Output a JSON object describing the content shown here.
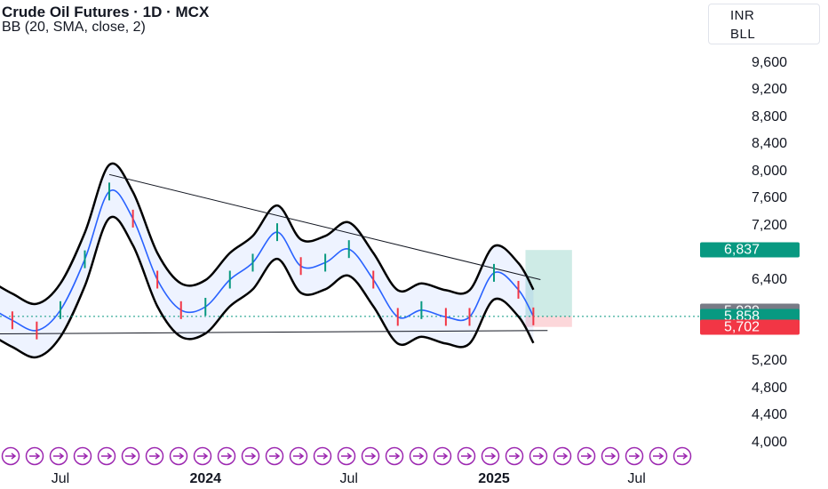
{
  "header": {
    "title": "Crude Oil Futures · 1D · MCX",
    "indicator": "BB (20, SMA, close, 2)",
    "currency": "INR",
    "unit": "BLL"
  },
  "price_badges": [
    {
      "label": "6,837",
      "value": 6837,
      "color": "#089981"
    },
    {
      "label": "5,929",
      "value": 5929,
      "color": "#787b86"
    },
    {
      "label": "5,858",
      "value": 5858,
      "color": "#089981"
    },
    {
      "label": "5,702",
      "value": 5702,
      "color": "#f23645"
    }
  ],
  "chart_data": {
    "type": "line",
    "title": "Crude Oil Futures · 1D · MCX",
    "y_axis": {
      "ticks": [
        9600,
        9200,
        8800,
        8400,
        8000,
        7600,
        7200,
        6400,
        5200,
        4800,
        4400,
        4000
      ],
      "tick_labels": [
        "9,600",
        "9,200",
        "8,800",
        "8,400",
        "8,000",
        "7,600",
        "7,200",
        "6,400",
        "5,200",
        "4,800",
        "4,400",
        "4,000"
      ]
    },
    "x_axis": {
      "labels": [
        {
          "text": "Jul",
          "date": "2023-07-01",
          "bold": false
        },
        {
          "text": "2024",
          "date": "2024-01-01",
          "bold": true
        },
        {
          "text": "Jul",
          "date": "2024-07-01",
          "bold": false
        },
        {
          "text": "2025",
          "date": "2025-01-01",
          "bold": true
        },
        {
          "text": "Jul",
          "date": "2025-07-01",
          "bold": false
        }
      ]
    },
    "series": [
      {
        "name": "Price",
        "color": "#2962ff",
        "points": [
          [
            "2023-04-01",
            6000
          ],
          [
            "2023-05-01",
            5800
          ],
          [
            "2023-06-01",
            5650
          ],
          [
            "2023-07-01",
            5950
          ],
          [
            "2023-08-01",
            6700
          ],
          [
            "2023-09-01",
            7700
          ],
          [
            "2023-10-01",
            7300
          ],
          [
            "2023-11-01",
            6400
          ],
          [
            "2023-12-01",
            5950
          ],
          [
            "2024-01-01",
            6000
          ],
          [
            "2024-02-01",
            6400
          ],
          [
            "2024-03-01",
            6650
          ],
          [
            "2024-04-01",
            7100
          ],
          [
            "2024-05-01",
            6600
          ],
          [
            "2024-06-01",
            6650
          ],
          [
            "2024-07-01",
            6850
          ],
          [
            "2024-08-01",
            6400
          ],
          [
            "2024-09-01",
            5850
          ],
          [
            "2024-10-01",
            5950
          ],
          [
            "2024-11-01",
            5850
          ],
          [
            "2024-12-01",
            5850
          ],
          [
            "2025-01-01",
            6500
          ],
          [
            "2025-02-01",
            6250
          ],
          [
            "2025-02-20",
            5858
          ]
        ]
      }
    ],
    "annotations": {
      "upper_trendline": [
        [
          "2023-09-01",
          7950
        ],
        [
          "2025-03-01",
          6400
        ]
      ],
      "lower_trendline": [
        [
          "2023-04-15",
          5600
        ],
        [
          "2025-03-10",
          5650
        ]
      ],
      "target_zone": {
        "from": "2025-02-10",
        "to": "2025-04-10",
        "top": 6837,
        "bottom": 5858
      },
      "stop_zone": {
        "from": "2025-02-10",
        "to": "2025-04-10",
        "top": 5858,
        "bottom": 5702
      }
    }
  }
}
